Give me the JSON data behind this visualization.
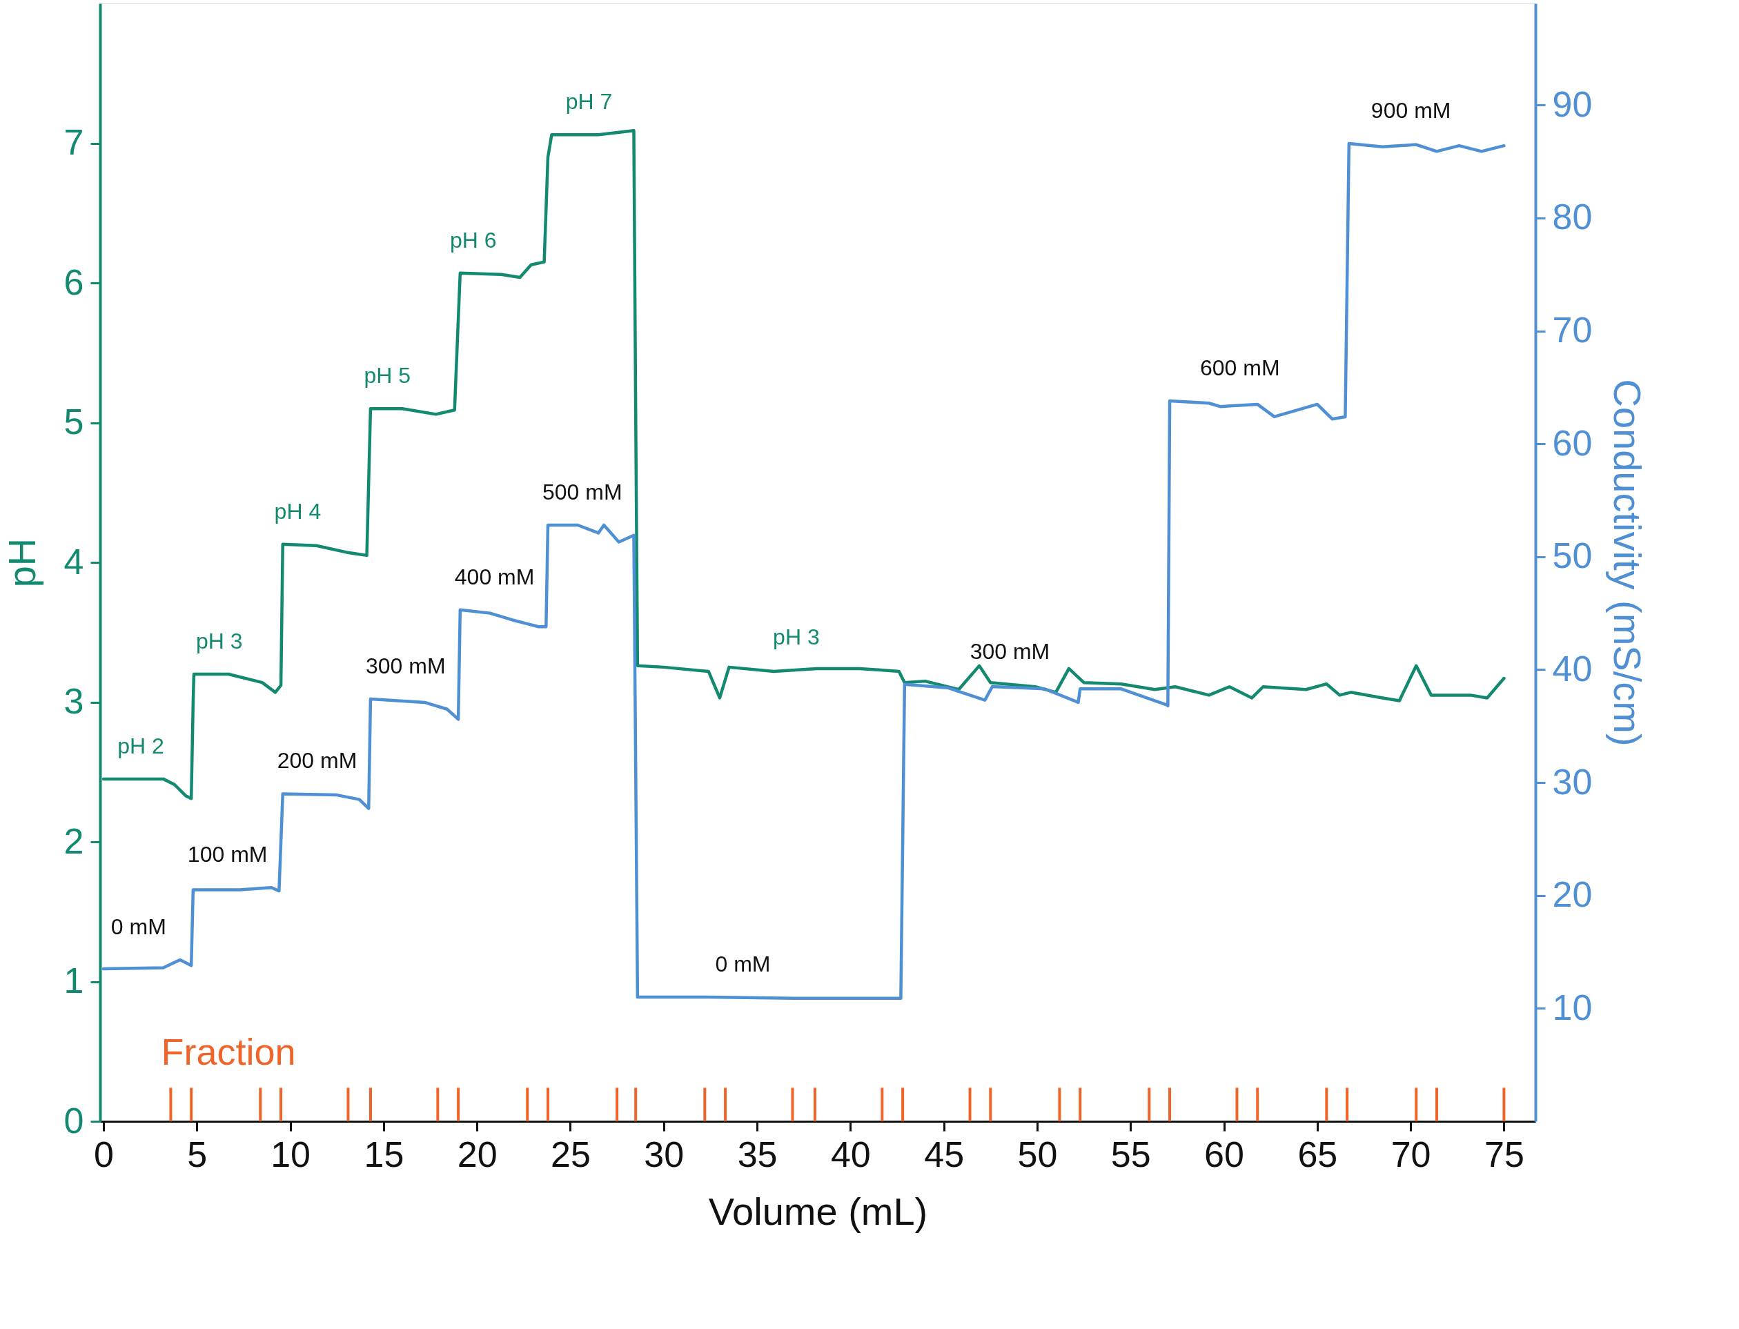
{
  "chart_data": {
    "type": "line",
    "xlabel": "Volume (mL)",
    "ylabel": "pH",
    "y2label": "Conductivity (mS/cm)",
    "xlim": [
      0,
      76.5
    ],
    "xticks": [
      0,
      5,
      10,
      15,
      20,
      25,
      30,
      35,
      40,
      45,
      50,
      55,
      60,
      65,
      70,
      75
    ],
    "ylim": [
      0,
      8
    ],
    "yticks": [
      0,
      1,
      2,
      3,
      4,
      5,
      6,
      7
    ],
    "y2lim": [
      0,
      99
    ],
    "y2ticks": [
      10,
      20,
      30,
      40,
      50,
      60,
      70,
      80,
      90
    ],
    "grid": false,
    "marker": "none",
    "line_style": "solid",
    "series": [
      {
        "axis": "y",
        "color": "#13896f",
        "x": [
          0,
          3.2,
          3.8,
          4.4,
          4.7,
          4.8,
          4.84,
          5,
          6.7,
          8.5,
          9.2,
          9.5,
          9.6,
          11.4,
          13.1,
          14.1,
          14.3,
          16.0,
          17.8,
          18.8,
          19.1,
          21.3,
          22.3,
          22.9,
          23.6,
          23.8,
          24.0,
          26.5,
          28.4,
          28.5,
          28.6,
          30.0,
          32.4,
          33.0,
          33.5,
          35.9,
          38.2,
          40.5,
          42.6,
          42.9,
          44.0,
          45.8,
          46.9,
          47.5,
          49.9,
          51.0,
          51.7,
          52.5,
          54.5,
          56.3,
          57.4,
          59.2,
          60.3,
          61.5,
          62.1,
          64.4,
          65.5,
          66.2,
          66.8,
          68.5,
          69.4,
          70.3,
          71.1,
          73.2,
          74.1,
          75.0
        ],
        "values": [
          2.45,
          2.45,
          2.41,
          2.33,
          2.31,
          3.0,
          3.2,
          3.2,
          3.2,
          3.14,
          3.07,
          3.12,
          4.13,
          4.12,
          4.07,
          4.05,
          5.1,
          5.1,
          5.06,
          5.09,
          6.07,
          6.06,
          6.04,
          6.13,
          6.15,
          6.9,
          7.06,
          7.06,
          7.09,
          5.08,
          3.26,
          3.25,
          3.22,
          3.03,
          3.25,
          3.22,
          3.24,
          3.24,
          3.22,
          3.14,
          3.15,
          3.09,
          3.26,
          3.14,
          3.11,
          3.07,
          3.24,
          3.14,
          3.13,
          3.09,
          3.11,
          3.05,
          3.11,
          3.03,
          3.11,
          3.09,
          3.13,
          3.05,
          3.07,
          3.03,
          3.01,
          3.26,
          3.05,
          3.05,
          3.03,
          3.17
        ]
      },
      {
        "axis": "y2",
        "color": "#4f8fd4",
        "x": [
          0,
          3.2,
          4.1,
          4.7,
          4.8,
          7.3,
          9.0,
          9.4,
          9.6,
          12.5,
          13.7,
          14.2,
          14.3,
          17.2,
          18.4,
          19.0,
          19.1,
          20.7,
          21.9,
          23.3,
          23.7,
          23.8,
          25.4,
          26.5,
          26.8,
          27.6,
          28.4,
          28.6,
          32.4,
          37.0,
          42.7,
          42.9,
          45.2,
          47.2,
          47.6,
          50.4,
          52.2,
          52.3,
          54.5,
          56.9,
          57.0,
          57.1,
          59.2,
          59.8,
          61.8,
          62.7,
          65.0,
          65.8,
          66.5,
          66.7,
          68.5,
          70.3,
          71.4,
          72.6,
          73.8,
          75.0
        ],
        "values": [
          13.5,
          13.6,
          14.3,
          13.8,
          20.5,
          20.5,
          20.7,
          20.4,
          29.0,
          28.9,
          28.5,
          27.7,
          37.4,
          37.1,
          36.5,
          35.6,
          45.3,
          45.0,
          44.4,
          43.8,
          43.8,
          52.8,
          52.8,
          52.1,
          52.8,
          51.3,
          51.9,
          11.0,
          11.0,
          10.9,
          10.9,
          38.7,
          38.4,
          37.3,
          38.5,
          38.3,
          37.1,
          38.3,
          38.3,
          36.9,
          36.8,
          63.8,
          63.6,
          63.3,
          63.5,
          62.4,
          63.5,
          62.2,
          62.4,
          86.6,
          86.3,
          86.5,
          85.9,
          86.4,
          85.9,
          86.4
        ]
      },
      {
        "type": "bar",
        "axis": "y",
        "name": "Fraction",
        "color": "#f0642a",
        "x": [
          3.6,
          4.7,
          8.4,
          9.5,
          13.1,
          14.3,
          17.9,
          19.0,
          22.7,
          23.8,
          27.5,
          28.5,
          32.2,
          33.3,
          36.9,
          38.1,
          41.7,
          42.8,
          46.4,
          47.5,
          51.2,
          52.3,
          56.0,
          57.1,
          60.7,
          61.8,
          65.5,
          66.6,
          70.3,
          71.4,
          75.0
        ],
        "values": [
          0.24,
          0.24,
          0.24,
          0.24,
          0.24,
          0.24,
          0.24,
          0.24,
          0.24,
          0.24,
          0.24,
          0.24,
          0.24,
          0.24,
          0.24,
          0.24,
          0.24,
          0.24,
          0.24,
          0.24,
          0.24,
          0.24,
          0.24,
          0.24,
          0.24,
          0.24,
          0.24,
          0.24,
          0.24,
          0.24,
          0.24
        ]
      }
    ],
    "annotations": [
      {
        "text": "pH 2",
        "x": 2.0,
        "y": 2.45
      },
      {
        "text": "pH 3",
        "x": 6.2,
        "y": 3.2
      },
      {
        "text": "pH 4",
        "x": 10.4,
        "y": 4.13
      },
      {
        "text": "pH 5",
        "x": 15.2,
        "y": 5.1
      },
      {
        "text": "pH 6",
        "x": 19.8,
        "y": 6.07
      },
      {
        "text": "pH 7",
        "x": 26.0,
        "y": 7.06
      },
      {
        "text": "pH 3",
        "x": 37.1,
        "y": 3.23
      },
      "0 mM",
      "100 mM",
      "200 mM",
      "300 mM",
      "400 mM",
      "500 mM",
      "0 mM",
      "300 mM",
      "600 mM",
      "900 mM"
    ]
  }
}
